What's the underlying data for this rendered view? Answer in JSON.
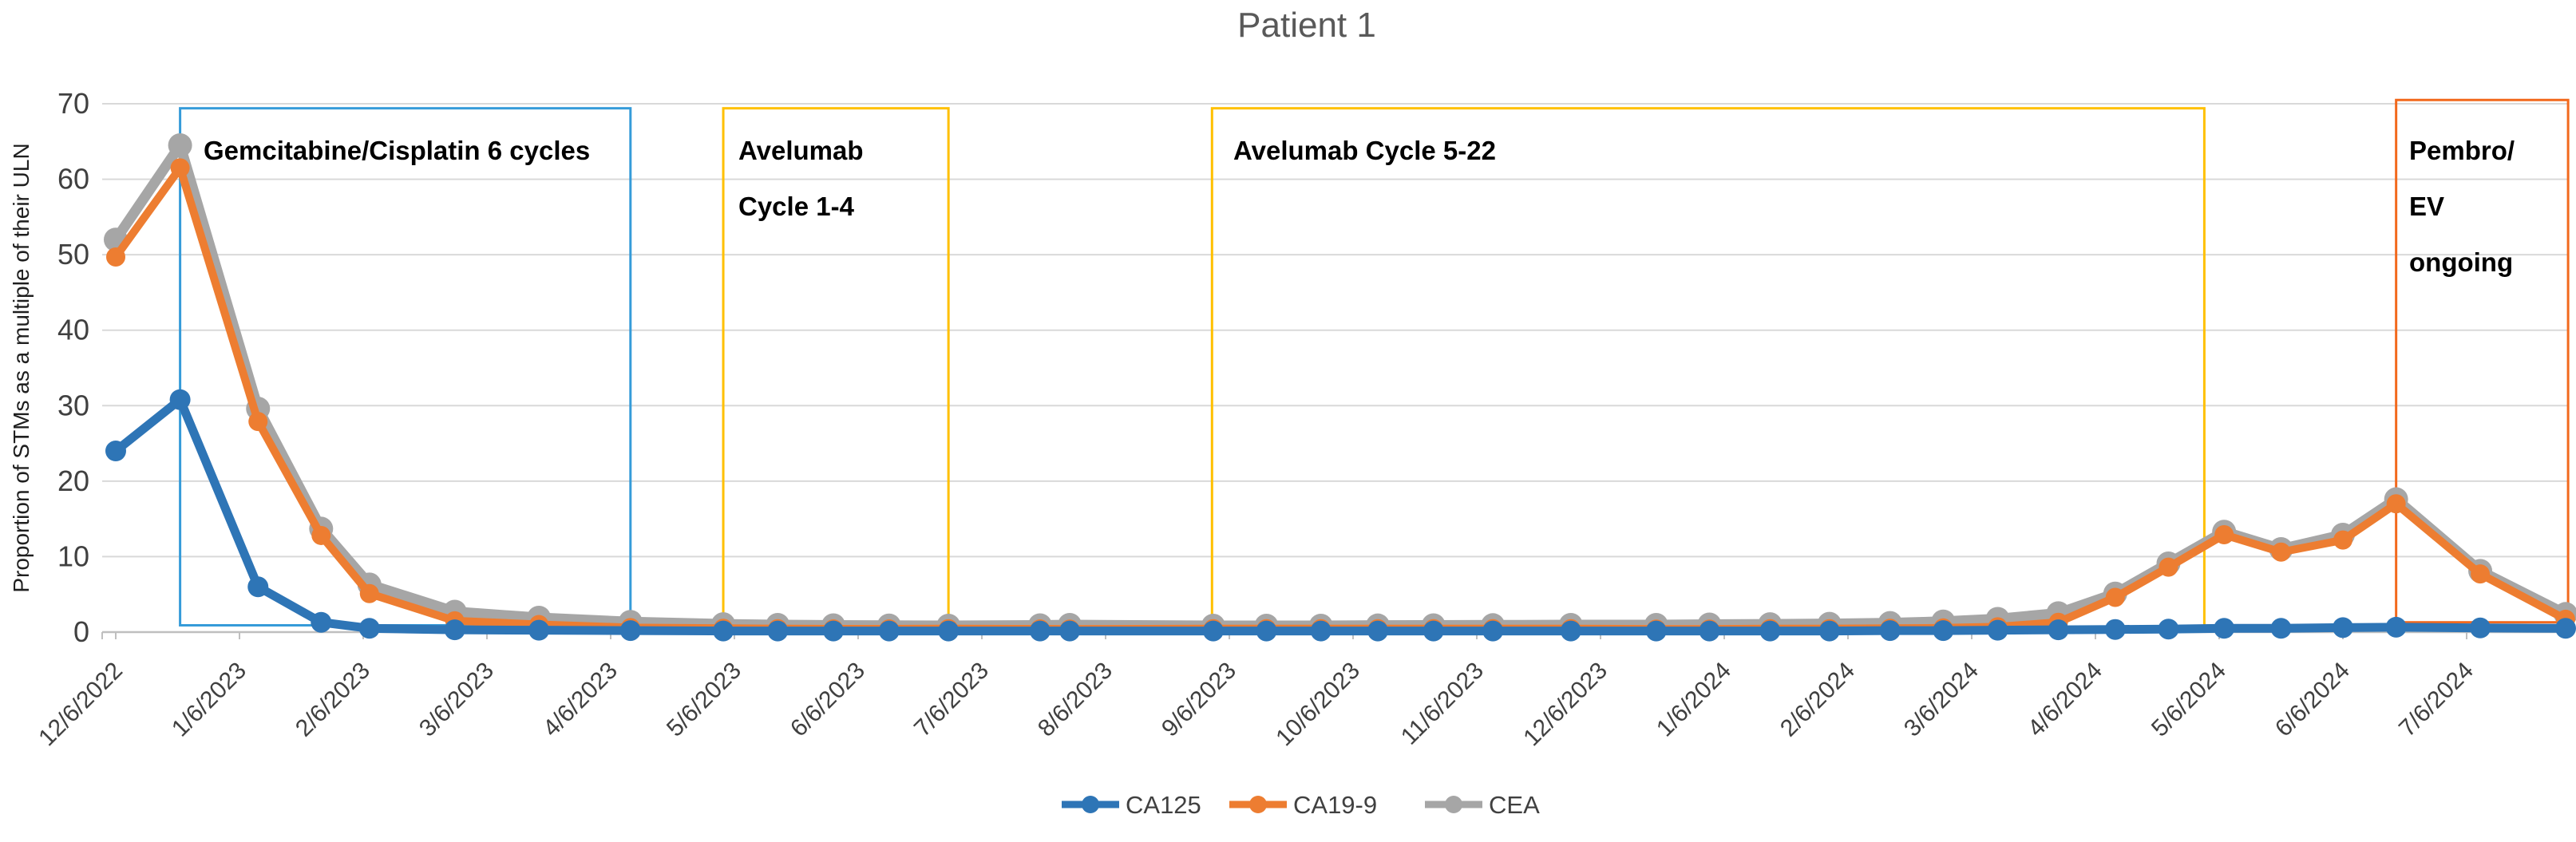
{
  "title": "Patient 1",
  "y_axis": {
    "title": "Proportion of STMs as a multiple of their ULN",
    "tick_labels": [
      "0",
      "10",
      "20",
      "30",
      "40",
      "50",
      "60",
      "70"
    ],
    "min": 0,
    "max": 70,
    "step": 10
  },
  "x_axis": {
    "tick_labels": [
      "12/6/2022",
      "1/6/2023",
      "2/6/2023",
      "3/6/2023",
      "4/6/2023",
      "5/6/2023",
      "6/6/2023",
      "7/6/2023",
      "8/6/2023",
      "9/6/2023",
      "10/6/2023",
      "11/6/2023",
      "12/6/2023",
      "1/6/2024",
      "2/6/2024",
      "3/6/2024",
      "4/6/2024",
      "5/6/2024",
      "6/6/2024",
      "7/6/2024"
    ]
  },
  "legend": {
    "items": [
      {
        "label": "CA125",
        "color": "#2E75B6"
      },
      {
        "label": "CA19-9",
        "color": "#ED7D31"
      },
      {
        "label": "CEA",
        "color": "#A6A6A6"
      }
    ]
  },
  "colors": {
    "title": "#595959",
    "axis_text": "#404040",
    "y_axis_title_text": "#1F1F1F",
    "gridline": "#D9D9D9",
    "axis_line": "#BFBFBF",
    "annotation_text": "#000000",
    "chemo_box": "#359BD9",
    "avelumab_box": "#FFC000",
    "pembro_box": "#F2691D"
  },
  "chart_data": {
    "type": "line",
    "title": "Patient 1",
    "xlabel": "",
    "ylabel": "Proportion of STMs as a multiple of their ULN",
    "ylim": [
      0,
      70
    ],
    "grid": true,
    "legend_position": "bottom-center",
    "x_unit": "months since 12/6/2022, ticks monthly from 12/6/2022 to 7/6/2024",
    "x": [
      0.0,
      0.52,
      1.15,
      1.66,
      2.05,
      2.74,
      3.42,
      4.16,
      4.91,
      5.35,
      5.8,
      6.25,
      6.73,
      7.47,
      7.71,
      8.87,
      9.3,
      9.74,
      10.2,
      10.65,
      11.13,
      11.76,
      12.45,
      12.88,
      13.37,
      13.85,
      14.34,
      14.77,
      15.21,
      15.7,
      16.16,
      16.59,
      17.04,
      17.5,
      18.0,
      18.43,
      19.11,
      19.8
    ],
    "series": [
      {
        "name": "CA125",
        "color": "#2E75B6",
        "values": [
          24.0,
          30.8,
          6.0,
          1.3,
          0.5,
          0.3,
          0.25,
          0.2,
          0.15,
          0.15,
          0.15,
          0.15,
          0.15,
          0.15,
          0.15,
          0.15,
          0.15,
          0.15,
          0.15,
          0.15,
          0.15,
          0.15,
          0.15,
          0.15,
          0.15,
          0.15,
          0.2,
          0.2,
          0.25,
          0.3,
          0.35,
          0.4,
          0.5,
          0.5,
          0.6,
          0.65,
          0.55,
          0.5
        ]
      },
      {
        "name": "CA19-9",
        "color": "#ED7D31",
        "values": [
          49.7,
          61.5,
          27.9,
          12.8,
          5.1,
          1.5,
          1.0,
          0.6,
          0.5,
          0.45,
          0.42,
          0.42,
          0.45,
          0.42,
          0.4,
          0.45,
          0.45,
          0.45,
          0.45,
          0.45,
          0.45,
          0.45,
          0.4,
          0.4,
          0.45,
          0.45,
          0.5,
          0.55,
          0.7,
          1.3,
          4.6,
          8.6,
          12.9,
          10.6,
          12.2,
          17.0,
          7.7,
          1.7
        ]
      },
      {
        "name": "CEA",
        "color": "#A6A6A6",
        "values": [
          52.0,
          64.5,
          29.6,
          13.7,
          6.3,
          2.7,
          1.9,
          1.35,
          1.05,
          0.95,
          0.9,
          0.87,
          0.85,
          0.9,
          0.95,
          0.85,
          0.85,
          0.85,
          0.88,
          0.9,
          0.92,
          0.95,
          0.95,
          1.0,
          1.05,
          1.1,
          1.2,
          1.4,
          1.75,
          2.5,
          5.1,
          9.1,
          13.3,
          11.0,
          12.9,
          17.6,
          8.1,
          2.4
        ]
      }
    ],
    "annotations": [
      {
        "id": "chemo",
        "label": "Gemcitabine/Cisplatin 6 cycles",
        "label_lines": [
          "Gemcitabine/Cisplatin 6 cycles"
        ],
        "t_start": 0.52,
        "t_end": 4.16,
        "top_v": 69.4,
        "bottom_v": 0.9,
        "color": "#359BD9"
      },
      {
        "id": "avelumab-1-4",
        "label": "Avelumab Cycle 1-4",
        "label_lines": [
          "Avelumab",
          "Cycle 1-4"
        ],
        "t_start": 4.91,
        "t_end": 6.73,
        "top_v": 69.4,
        "bottom_v": 0.6,
        "color": "#FFC000"
      },
      {
        "id": "avelumab-5-22",
        "label": "Avelumab Cycle 5-22",
        "label_lines": [
          "Avelumab Cycle 5-22"
        ],
        "t_start": 8.86,
        "t_end": 16.88,
        "top_v": 69.4,
        "bottom_v": 0.6,
        "color": "#FFC000"
      },
      {
        "id": "pembro-ev",
        "label": "Pembro/EV ongoing",
        "label_lines": [
          "Pembro/",
          "EV",
          "ongoing"
        ],
        "t_start": 18.43,
        "t_end": 19.82,
        "top_v": 70.5,
        "bottom_v": 1.3,
        "color": "#F2691D"
      }
    ]
  }
}
